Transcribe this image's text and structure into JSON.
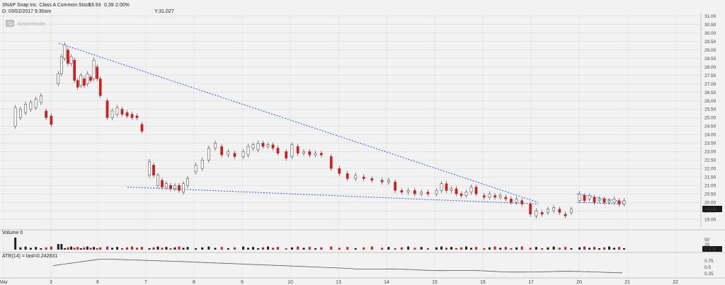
{
  "header": {
    "title": "SNAP Snap Inc. Class A Common Stock",
    "price": "19.93",
    "change": "0.39",
    "change_pct": "2.00%",
    "date_line": "D: 03/02/2017 9:30am",
    "y_readout": "Y:31.027",
    "watermark": "Ameritrade"
  },
  "colors": {
    "up": "#ffffff",
    "down": "#cc1f1f",
    "trendline": "#3355ee",
    "grid": "#d6d6d6",
    "price_tag": "#1a1a1a"
  },
  "price_tag": "19.93",
  "volume": {
    "label": "Volume 0",
    "tag": "1.9 M",
    "ticks": [
      "50",
      "25"
    ]
  },
  "atr": {
    "label": "ATR(14) = last=0.242831",
    "ticks": [
      "0.75",
      "0.5",
      "0.25"
    ]
  },
  "chart_data": {
    "type": "candlestick",
    "price_ylim": [
      18.5,
      31.2
    ],
    "price_ticks": [
      "31.00",
      "30.50",
      "30.00",
      "29.50",
      "29.00",
      "28.50",
      "28.00",
      "27.50",
      "27.00",
      "26.50",
      "26.00",
      "25.50",
      "25.00",
      "24.50",
      "24.00",
      "23.50",
      "23.00",
      "22.50",
      "22.00",
      "21.50",
      "21.00",
      "20.50",
      "20.00",
      "19.50",
      "19.00"
    ],
    "x_ticks": [
      "Mar",
      "3",
      "6",
      "7",
      "8",
      "9",
      "10",
      "13",
      "14",
      "15",
      "16",
      "17",
      "20",
      "21",
      "22"
    ],
    "candles": [
      {
        "d": "Mar 2",
        "intraday": [
          [
            24.5,
            25.6
          ],
          [
            25.0,
            25.5
          ],
          [
            25.3,
            25.8
          ],
          [
            25.5,
            25.9
          ],
          [
            25.6,
            26.1
          ],
          [
            25.9,
            26.3
          ],
          [
            25.4,
            25.0
          ],
          [
            25.1,
            24.6
          ]
        ]
      },
      {
        "d": "3",
        "intraday": [
          [
            27.0,
            27.6
          ],
          [
            27.6,
            28.6
          ],
          [
            28.5,
            29.3
          ],
          [
            29.0,
            28.2
          ],
          [
            28.2,
            28.6
          ],
          [
            28.4,
            27.2
          ],
          [
            27.2,
            26.8
          ],
          [
            26.9,
            27.5
          ],
          [
            27.3,
            26.9
          ],
          [
            27.0,
            27.6
          ],
          [
            27.4,
            27.2
          ],
          [
            27.3,
            28.4
          ],
          [
            28.0,
            27.3
          ],
          [
            27.3,
            26.3
          ]
        ]
      },
      {
        "d": "6",
        "intraday": [
          [
            26.0,
            25.0
          ],
          [
            25.0,
            25.4
          ],
          [
            25.2,
            25.6
          ],
          [
            25.5,
            25.2
          ],
          [
            25.3,
            25.1
          ],
          [
            25.2,
            25.0
          ],
          [
            25.1,
            25.0
          ],
          [
            24.6,
            24.2
          ]
        ]
      },
      {
        "d": "7",
        "intraday": [
          [
            21.6,
            22.4
          ],
          [
            22.2,
            21.6
          ],
          [
            21.0,
            21.6
          ],
          [
            21.3,
            20.9
          ],
          [
            20.9,
            21.1
          ],
          [
            21.0,
            20.8
          ],
          [
            20.8,
            21.0
          ],
          [
            21.0,
            20.7
          ],
          [
            20.6,
            21.1
          ],
          [
            21.0,
            21.4
          ]
        ]
      },
      {
        "d": "8",
        "intraday": [
          [
            21.8,
            22.2
          ],
          [
            22.0,
            22.5
          ],
          [
            22.5,
            23.2
          ],
          [
            23.2,
            23.5
          ],
          [
            23.3,
            22.8
          ],
          [
            22.8,
            23.0
          ],
          [
            22.9,
            22.7
          ]
        ]
      },
      {
        "d": "9",
        "intraday": [
          [
            22.7,
            23.0
          ],
          [
            22.8,
            23.3
          ],
          [
            23.2,
            23.4
          ],
          [
            23.1,
            23.5
          ],
          [
            23.5,
            23.3
          ],
          [
            23.3,
            23.4
          ],
          [
            23.4,
            23.2
          ],
          [
            23.2,
            22.9
          ]
        ]
      },
      {
        "d": "10",
        "intraday": [
          [
            23.0,
            22.6
          ],
          [
            22.7,
            23.4
          ],
          [
            23.3,
            22.9
          ],
          [
            22.9,
            23.0
          ],
          [
            23.0,
            22.8
          ],
          [
            22.8,
            22.9
          ],
          [
            22.9,
            22.8
          ]
        ]
      },
      {
        "d": "13",
        "intraday": [
          [
            22.7,
            22.0
          ],
          [
            22.0,
            21.7
          ],
          [
            21.7,
            21.4
          ],
          [
            21.4,
            21.6
          ],
          [
            21.5,
            21.4
          ],
          [
            21.4,
            21.3
          ]
        ]
      },
      {
        "d": "14",
        "intraday": [
          [
            21.3,
            21.2
          ],
          [
            21.2,
            21.3
          ],
          [
            21.2,
            20.7
          ],
          [
            20.7,
            20.6
          ],
          [
            20.6,
            20.7
          ],
          [
            20.7,
            20.5
          ],
          [
            20.5,
            20.6
          ],
          [
            20.6,
            20.5
          ]
        ]
      },
      {
        "d": "15",
        "intraday": [
          [
            20.5,
            20.7
          ],
          [
            20.7,
            21.1
          ],
          [
            21.1,
            20.7
          ],
          [
            20.7,
            20.8
          ],
          [
            20.8,
            20.5
          ],
          [
            20.5,
            20.4
          ],
          [
            20.4,
            20.6
          ],
          [
            20.6,
            20.9
          ],
          [
            20.9,
            20.5
          ]
        ]
      },
      {
        "d": "16",
        "intraday": [
          [
            20.4,
            20.3
          ],
          [
            20.3,
            20.5
          ],
          [
            20.4,
            20.3
          ],
          [
            20.3,
            20.4
          ],
          [
            20.3,
            20.2
          ],
          [
            20.2,
            20.0
          ],
          [
            20.0,
            20.2
          ],
          [
            20.1,
            19.9
          ]
        ]
      },
      {
        "d": "17",
        "intraday": [
          [
            19.9,
            19.3
          ],
          [
            19.2,
            19.5
          ],
          [
            19.4,
            19.3
          ],
          [
            19.4,
            19.6
          ],
          [
            19.5,
            19.7
          ],
          [
            19.6,
            19.4
          ],
          [
            19.3,
            19.2
          ],
          [
            19.4,
            19.6
          ]
        ]
      },
      {
        "d": "20",
        "intraday": [
          [
            20.1,
            20.5
          ],
          [
            20.4,
            20.1
          ],
          [
            20.2,
            20.4
          ],
          [
            20.3,
            20.0
          ],
          [
            20.1,
            20.2
          ],
          [
            20.2,
            20.0
          ],
          [
            20.0,
            20.1
          ],
          [
            20.0,
            20.2
          ],
          [
            20.1,
            19.9
          ],
          [
            19.9,
            20.1
          ]
        ]
      }
    ],
    "trendlines": [
      {
        "from": [
          "3",
          29.4
        ],
        "to": [
          "17",
          20.0
        ]
      },
      {
        "from": [
          "7",
          20.9
        ],
        "to": [
          "17",
          19.9
        ]
      },
      {
        "from": [
          "20",
          20.5
        ],
        "to": [
          "20+",
          20.0
        ]
      },
      {
        "from": [
          "20",
          20.0
        ],
        "to": [
          "20+",
          19.9
        ]
      }
    ]
  }
}
